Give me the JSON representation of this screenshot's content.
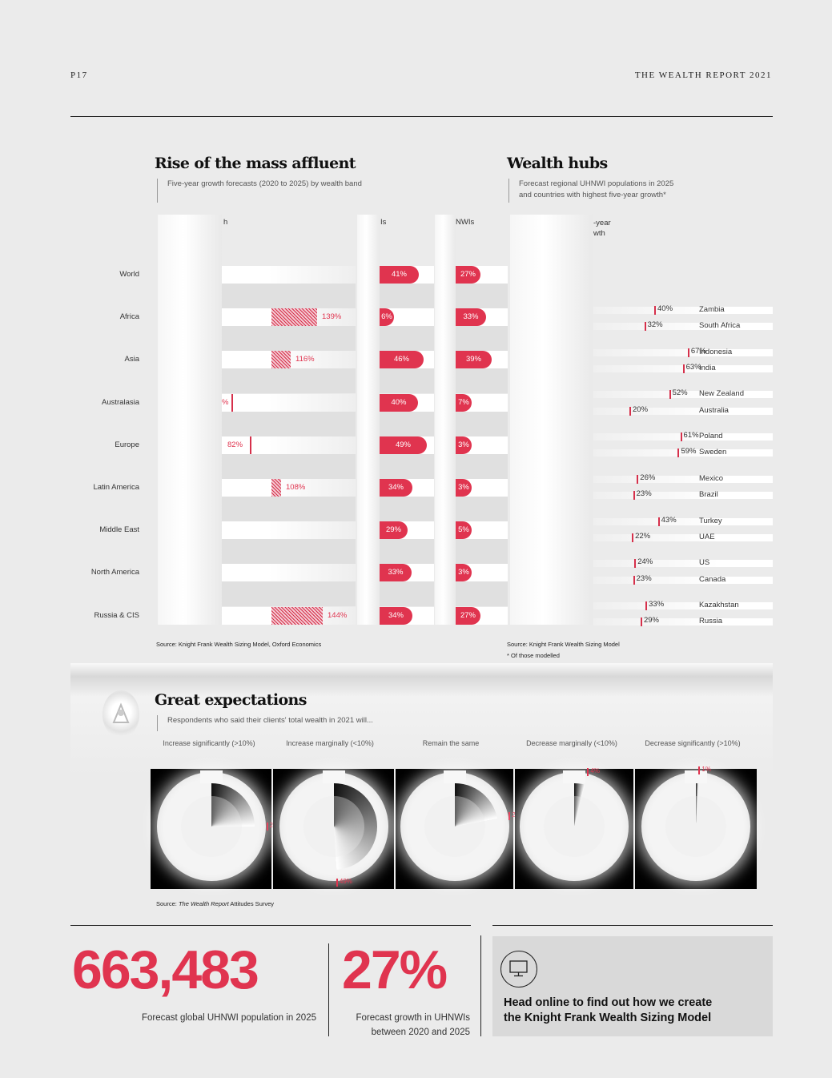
{
  "header": {
    "page": "P17",
    "report": "THE WEALTH REPORT 2021"
  },
  "mass_affluent": {
    "title": "Rise of the mass affluent",
    "subtitle": "Five-year growth forecasts (2020 to 2025) by wealth band",
    "col_fragments": [
      "h",
      "Is",
      "NWIs"
    ],
    "regions": [
      {
        "name": "World"
      },
      {
        "name": "Africa",
        "hatch": "139%"
      },
      {
        "name": "Asia",
        "hatch": "116%"
      },
      {
        "name": "Australasia",
        "hatch": "%"
      },
      {
        "name": "Europe",
        "hatch": "82%"
      },
      {
        "name": "Latin America",
        "hatch": "108%"
      },
      {
        "name": "Middle East"
      },
      {
        "name": "North America"
      },
      {
        "name": "Russia & CIS",
        "hatch": "144%"
      }
    ],
    "hnwi": [
      "41%",
      "6%",
      "46%",
      "40%",
      "49%",
      "34%",
      "29%",
      "33%",
      "34%"
    ],
    "uhnwi": [
      "27%",
      "33%",
      "39%",
      "7%",
      "3%",
      "3%",
      "5%",
      "3%",
      "27%"
    ],
    "source": "Source: Knight Frank Wealth Sizing Model, Oxford Economics"
  },
  "wealth_hubs": {
    "title": "Wealth hubs",
    "subtitle_line1": "Forecast regional UHNWI populations in 2025",
    "subtitle_line2": "and countries with highest five-year growth*",
    "col_fragment_1": "-year",
    "col_fragment_2": "wth",
    "countries": [
      {
        "name": "Zambia",
        "pct": "40%",
        "value": 40
      },
      {
        "name": "South Africa",
        "pct": "32%",
        "value": 32
      },
      {
        "name": "Indonesia",
        "pct": "67%",
        "value": 67
      },
      {
        "name": "India",
        "pct": "63%",
        "value": 63
      },
      {
        "name": "New Zealand",
        "pct": "52%",
        "value": 52
      },
      {
        "name": "Australia",
        "pct": "20%",
        "value": 20
      },
      {
        "name": "Poland",
        "pct": "61%",
        "value": 61
      },
      {
        "name": "Sweden",
        "pct": "59%",
        "value": 59
      },
      {
        "name": "Mexico",
        "pct": "26%",
        "value": 26
      },
      {
        "name": "Brazil",
        "pct": "23%",
        "value": 23
      },
      {
        "name": "Turkey",
        "pct": "43%",
        "value": 43
      },
      {
        "name": "UAE",
        "pct": "22%",
        "value": 22
      },
      {
        "name": "US",
        "pct": "24%",
        "value": 24
      },
      {
        "name": "Canada",
        "pct": "23%",
        "value": 23
      },
      {
        "name": "Kazakhstan",
        "pct": "33%",
        "value": 33
      },
      {
        "name": "Russia",
        "pct": "29%",
        "value": 29
      }
    ],
    "source": "Source: Knight Frank Wealth Sizing Model",
    "footnote": "* Of those modelled"
  },
  "expectations": {
    "title": "Great expectations",
    "subtitle": "Respondents who said their clients' total wealth in 2021 will...",
    "labels": [
      "Increase significantly (>10%)",
      "Increase marginally (<10%)",
      "Remain the same",
      "Decrease marginally (<10%)",
      "Decrease significantly (>10%)"
    ],
    "values": [
      "25%",
      "49%",
      "22%",
      "4%",
      "1%"
    ],
    "source_prefix": "Source: ",
    "source_italic": "The Wealth Report",
    "source_suffix": " Attitudes Survey"
  },
  "stats": {
    "stat1_value": "663,483",
    "stat1_caption": "Forecast global UHNWI population in 2025",
    "stat2_value": "27%",
    "stat2_caption_1": "Forecast growth in UHNWIs",
    "stat2_caption_2": "between 2020 and 2025",
    "cta_1": "Head online to find out how we create",
    "cta_2": "the Knight Frank Wealth Sizing Model"
  },
  "colors": {
    "accent": "#e0344f",
    "background": "#ebebeb"
  }
}
